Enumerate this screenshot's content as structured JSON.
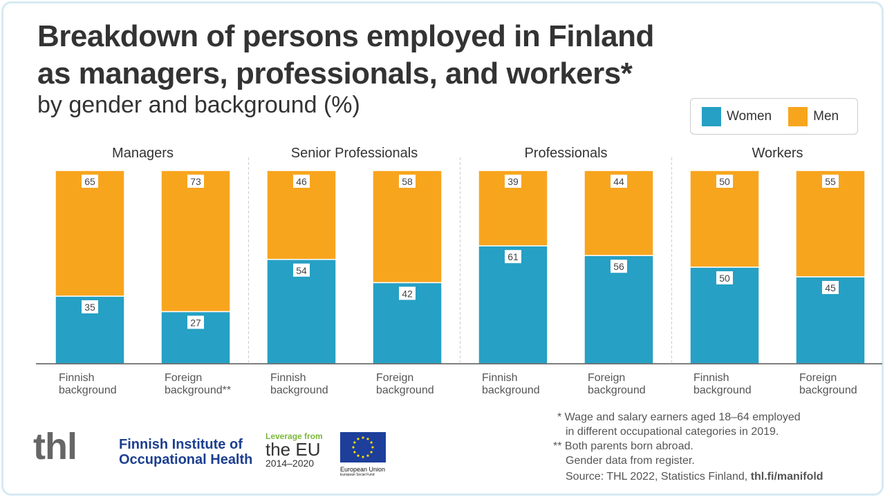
{
  "title_line1": "Breakdown of persons employed in Finland",
  "title_line2": "as managers, professionals, and workers*",
  "subtitle": "by gender and background (%)",
  "legend": [
    {
      "label": "Women",
      "color": "#26a0c4"
    },
    {
      "label": "Men",
      "color": "#f8a51e"
    }
  ],
  "chart_data": {
    "type": "bar",
    "stacked": true,
    "ylim": [
      0,
      100
    ],
    "groups": [
      "Managers",
      "Senior Professionals",
      "Professionals",
      "Workers"
    ],
    "categories": [
      [
        "Finnish",
        "background"
      ],
      [
        "Foreign",
        "background**"
      ],
      [
        "Finnish",
        "background"
      ],
      [
        "Foreign",
        "background"
      ],
      [
        "Finnish",
        "background"
      ],
      [
        "Foreign",
        "background"
      ],
      [
        "Finnish",
        "background"
      ],
      [
        "Foreign",
        "background"
      ]
    ],
    "series": [
      {
        "name": "Women",
        "values": [
          35,
          27,
          54,
          42,
          61,
          56,
          50,
          45
        ]
      },
      {
        "name": "Men",
        "values": [
          65,
          73,
          46,
          58,
          39,
          44,
          50,
          55
        ]
      }
    ]
  },
  "footnotes": [
    "* Wage and salary earners aged 18–64 employed",
    "in different occupational categories in 2019.",
    "** Both parents born abroad.",
    "Gender data from register."
  ],
  "source": "Source: THL 2022, Statistics Finland, ",
  "source_link": "thl.fi/manifold",
  "logos": {
    "thl": "thl",
    "fioh1": "Finnish Institute of",
    "fioh2": "Occupational Health",
    "eu1": "Leverage from",
    "eu2": "the EU",
    "eu3": "2014–2020",
    "eu4": "European Union",
    "eu5": "European Social Fund"
  }
}
